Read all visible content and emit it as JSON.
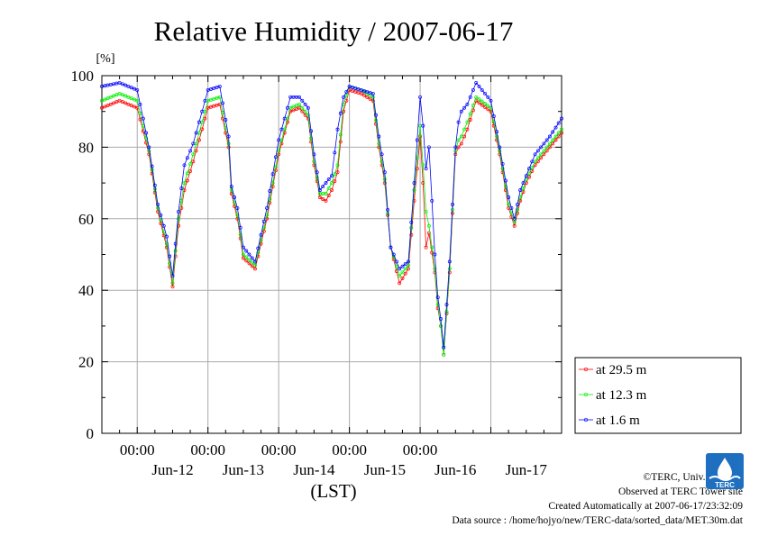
{
  "chart_data": {
    "type": "line",
    "title": "Relative Humidity / 2007-06-17",
    "ylabel": "[%]",
    "xlabel": "(LST)",
    "ylim": [
      0,
      100
    ],
    "y_ticks": [
      0,
      20,
      40,
      60,
      80,
      100
    ],
    "xlim": [
      "2007-06-11 12:00",
      "2007-06-17 24:00"
    ],
    "x_time_ticks": [
      "00:00",
      "00:00",
      "00:00",
      "00:00",
      "00:00"
    ],
    "x_day_labels": [
      "Jun-12",
      "Jun-13",
      "Jun-14",
      "Jun-15",
      "Jun-16",
      "Jun-17"
    ],
    "grid": true,
    "legend_position": "bottom-right, outside plot",
    "x": [
      "2007-06-11 12:00",
      "2007-06-11 18:00",
      "2007-06-12 00:00",
      "2007-06-12 04:00",
      "2007-06-12 07:00",
      "2007-06-12 10:00",
      "2007-06-12 12:00",
      "2007-06-12 14:00",
      "2007-06-12 16:00",
      "2007-06-12 19:00",
      "2007-06-13 00:00",
      "2007-06-13 04:00",
      "2007-06-13 07:00",
      "2007-06-13 08:00",
      "2007-06-13 10:00",
      "2007-06-13 12:00",
      "2007-06-13 16:00",
      "2007-06-13 20:00",
      "2007-06-14 00:00",
      "2007-06-14 04:00",
      "2007-06-14 07:00",
      "2007-06-14 10:00",
      "2007-06-14 12:00",
      "2007-06-14 14:00",
      "2007-06-14 16:00",
      "2007-06-14 18:00",
      "2007-06-14 20:00",
      "2007-06-14 22:00",
      "2007-06-15 00:00",
      "2007-06-15 04:00",
      "2007-06-15 08:00",
      "2007-06-15 10:00",
      "2007-06-15 12:00",
      "2007-06-15 14:00",
      "2007-06-15 17:00",
      "2007-06-15 20:00",
      "2007-06-15 22:00",
      "2007-06-16 00:00",
      "2007-06-16 01:00",
      "2007-06-16 02:00",
      "2007-06-16 03:00",
      "2007-06-16 05:00",
      "2007-06-16 06:00",
      "2007-06-16 07:00",
      "2007-06-16 08:00",
      "2007-06-16 10:00",
      "2007-06-16 12:00",
      "2007-06-16 13:00",
      "2007-06-16 14:00",
      "2007-06-16 16:00",
      "2007-06-16 19:00",
      "2007-06-17 00:00",
      "2007-06-17 03:00",
      "2007-06-17 06:00",
      "2007-06-17 08:00",
      "2007-06-17 10:00",
      "2007-06-17 12:00",
      "2007-06-17 15:00",
      "2007-06-17 20:00",
      "2007-06-17 24:00"
    ],
    "series": [
      {
        "name": "at 29.5 m",
        "color": "#ff0000",
        "values": [
          91,
          93,
          91,
          78,
          62,
          52,
          41,
          58,
          68,
          76,
          91,
          92,
          80,
          67,
          60,
          49,
          46,
          60,
          78,
          90,
          91,
          88,
          75,
          66,
          65,
          68,
          73,
          90,
          96,
          95,
          93,
          80,
          70,
          52,
          42,
          46,
          65,
          83,
          70,
          52,
          56,
          45,
          35,
          30,
          22,
          45,
          78,
          80,
          81,
          85,
          93,
          90,
          78,
          63,
          58,
          65,
          70,
          75,
          80,
          84
        ]
      },
      {
        "name": "at 12.3 m",
        "color": "#00ee00",
        "values": [
          93,
          95,
          93,
          79,
          63,
          53,
          42,
          60,
          70,
          78,
          93,
          94,
          81,
          68,
          61,
          50,
          47,
          61,
          79,
          91,
          92,
          89,
          76,
          67,
          67,
          70,
          75,
          92,
          97,
          96,
          94,
          81,
          71,
          52,
          44,
          47,
          68,
          86,
          75,
          62,
          58,
          46,
          36,
          30,
          22,
          46,
          79,
          82,
          83,
          87,
          94,
          91,
          79,
          64,
          59,
          66,
          71,
          76,
          81,
          85
        ]
      },
      {
        "name": "at 1.6 m",
        "color": "#0000ff",
        "values": [
          97,
          98,
          96,
          80,
          64,
          55,
          44,
          62,
          75,
          81,
          96,
          97,
          83,
          69,
          63,
          52,
          48,
          63,
          82,
          94,
          94,
          91,
          78,
          68,
          70,
          72,
          85,
          94,
          97,
          96,
          95,
          83,
          73,
          52,
          46,
          48,
          70,
          94,
          86,
          74,
          80,
          50,
          38,
          32,
          24,
          48,
          80,
          87,
          90,
          92,
          98,
          93,
          80,
          66,
          60,
          68,
          72,
          78,
          83,
          88
        ]
      }
    ]
  },
  "credits": {
    "copyright": "©TERC, Univ. Tsukuba",
    "observed": "Observed at TERC Tower site",
    "created": "Created Automatically at 2007-06-17/23:32:09",
    "source": "Data source : /home/hojyo/new/TERC-data/sorted_data/MET.30m.dat"
  },
  "logo": {
    "text": "TERC",
    "color": "#1e6fc0"
  }
}
